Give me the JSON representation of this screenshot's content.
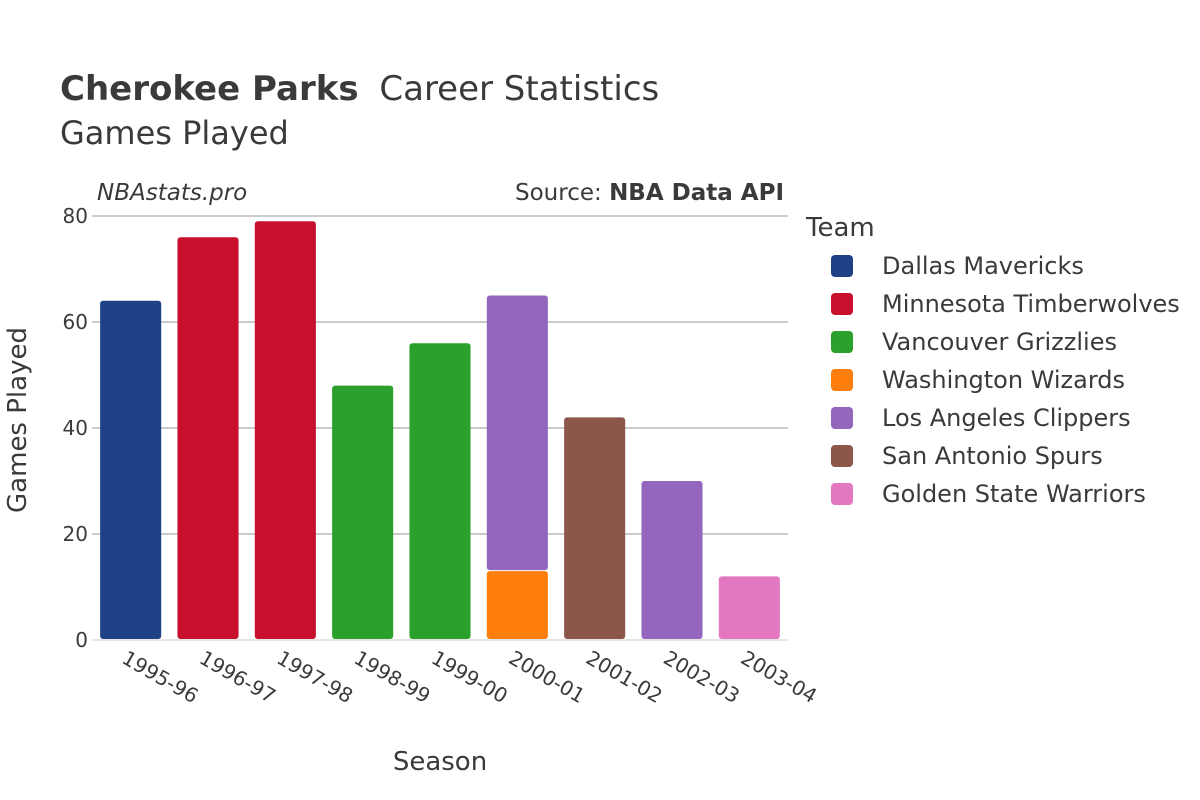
{
  "title": {
    "player": "Cherokee Parks",
    "rest": "Career Statistics",
    "subtitle": "Games Played"
  },
  "watermark": "NBAstats.pro",
  "source": {
    "prefix": "Source: ",
    "name": "NBA Data API"
  },
  "legend_title": "Team",
  "chart_data": {
    "type": "bar",
    "stacked": true,
    "xlabel": "Season",
    "ylabel": "Games Played",
    "ylim": [
      0,
      80
    ],
    "yticks": [
      0,
      20,
      40,
      60,
      80
    ],
    "grid": true,
    "legend_position": "right",
    "categories": [
      "1995-96",
      "1996-97",
      "1997-98",
      "1998-99",
      "1999-00",
      "2000-01",
      "2001-02",
      "2002-03",
      "2003-04"
    ],
    "series": [
      {
        "name": "Dallas Mavericks",
        "color": "#1f4287",
        "values": [
          64,
          0,
          0,
          0,
          0,
          0,
          0,
          0,
          0
        ]
      },
      {
        "name": "Minnesota Timberwolves",
        "color": "#c8102e",
        "values": [
          0,
          76,
          79,
          0,
          0,
          0,
          0,
          0,
          0
        ]
      },
      {
        "name": "Vancouver Grizzlies",
        "color": "#2ca02c",
        "values": [
          0,
          0,
          0,
          48,
          56,
          0,
          0,
          0,
          0
        ]
      },
      {
        "name": "Washington Wizards",
        "color": "#ff7f0e",
        "values": [
          0,
          0,
          0,
          0,
          0,
          13,
          0,
          0,
          0
        ]
      },
      {
        "name": "Los Angeles Clippers",
        "color": "#9467bd",
        "values": [
          0,
          0,
          0,
          0,
          0,
          52,
          0,
          30,
          0
        ]
      },
      {
        "name": "San Antonio Spurs",
        "color": "#8c564b",
        "values": [
          0,
          0,
          0,
          0,
          0,
          0,
          42,
          0,
          0
        ]
      },
      {
        "name": "Golden State Warriors",
        "color": "#e377c2",
        "values": [
          0,
          0,
          0,
          0,
          0,
          0,
          0,
          0,
          12
        ]
      }
    ]
  }
}
